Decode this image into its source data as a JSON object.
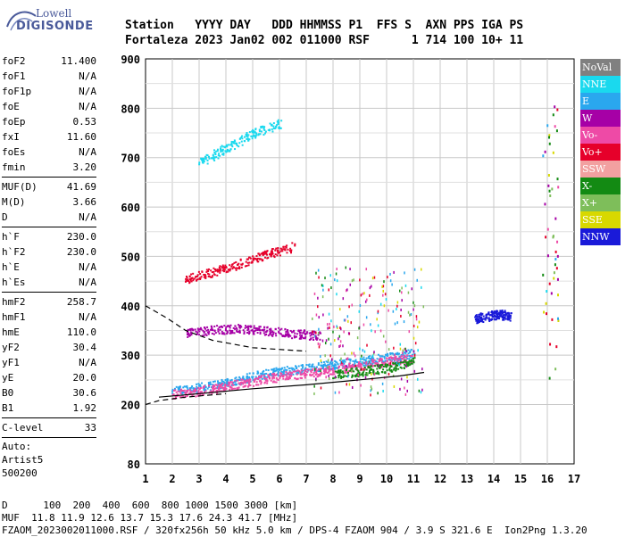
{
  "logo": {
    "line1": "Lowell",
    "line2": "DIGISONDE"
  },
  "header": {
    "line1": "Station   YYYY DAY   DDD HHMMSS P1  FFS S  AXN PPS IGA PS",
    "line2": "Fortaleza 2023 Jan02 002 011000 RSF      1 714 100 10+ 11"
  },
  "params": {
    "group1": [
      {
        "k": "foF2",
        "v": "11.400"
      },
      {
        "k": "foF1",
        "v": "N/A"
      },
      {
        "k": "foF1p",
        "v": "N/A"
      },
      {
        "k": "foE",
        "v": "N/A"
      },
      {
        "k": "foEp",
        "v": "0.53"
      },
      {
        "k": "fxI",
        "v": "11.60"
      },
      {
        "k": "foEs",
        "v": "N/A"
      },
      {
        "k": "fmin",
        "v": "3.20"
      }
    ],
    "group2": [
      {
        "k": "MUF(D)",
        "v": "41.69"
      },
      {
        "k": "M(D)",
        "v": "3.66"
      },
      {
        "k": "D",
        "v": "N/A"
      }
    ],
    "group3": [
      {
        "k": "h`F",
        "v": "230.0"
      },
      {
        "k": "h`F2",
        "v": "230.0"
      },
      {
        "k": "h`E",
        "v": "N/A"
      },
      {
        "k": "h`Es",
        "v": "N/A"
      }
    ],
    "group4": [
      {
        "k": "hmF2",
        "v": "258.7"
      },
      {
        "k": "hmF1",
        "v": "N/A"
      },
      {
        "k": "hmE",
        "v": "110.0"
      },
      {
        "k": "yF2",
        "v": "30.4"
      },
      {
        "k": "yF1",
        "v": "N/A"
      },
      {
        "k": "yE",
        "v": "20.0"
      },
      {
        "k": "B0",
        "v": "30.6"
      },
      {
        "k": "B1",
        "v": "1.92"
      }
    ],
    "clevel": {
      "k": "C-level",
      "v": "33"
    },
    "auto": [
      "Auto:",
      "Artist5",
      "500200"
    ]
  },
  "legend": [
    {
      "label": "NoVal",
      "color": "#808080"
    },
    {
      "label": "NNE",
      "color": "#1ad9ee"
    },
    {
      "label": "E",
      "color": "#2aa7ee"
    },
    {
      "label": "W",
      "color": "#a600a6"
    },
    {
      "label": "Vo-",
      "color": "#ee4aa6"
    },
    {
      "label": "Vo+",
      "color": "#e6002a"
    },
    {
      "label": "SSW",
      "color": "#f2a0a0"
    },
    {
      "label": "X-",
      "color": "#138a13"
    },
    {
      "label": "X+",
      "color": "#7ebe5a"
    },
    {
      "label": "SSE",
      "color": "#d8d800"
    },
    {
      "label": "NNW",
      "color": "#1a1ad9"
    }
  ],
  "bottom": {
    "line1": "D      100  200  400  600  800 1000 1500 3000 [km]",
    "line2": "MUF  11.8 11.9 12.6 13.7 15.3 17.6 24.3 41.7 [MHz]",
    "line3": "FZAOM_2023002011000.RSF / 320fx256h 50 kHz 5.0 km / DPS-4 FZAOM 904 / 3.9 S 321.6 E  Ion2Png 1.3.20"
  },
  "chart_data": {
    "type": "scatter",
    "title": "",
    "xlabel": "",
    "ylabel": "",
    "xlim": [
      1,
      17
    ],
    "ylim": [
      80,
      900
    ],
    "x_ticks": [
      1,
      2,
      3,
      4,
      5,
      6,
      7,
      8,
      9,
      10,
      11,
      12,
      13,
      14,
      15,
      16,
      17
    ],
    "y_ticks": [
      80,
      200,
      300,
      400,
      500,
      600,
      700,
      800,
      900
    ],
    "grid": true,
    "legend_position": "right",
    "series": [
      {
        "name": "E",
        "points": [
          [
            2.0,
            228
          ],
          [
            3.0,
            235
          ],
          [
            4.0,
            245
          ],
          [
            5.0,
            258
          ],
          [
            6.0,
            268
          ],
          [
            7.0,
            275
          ],
          [
            8.0,
            282
          ],
          [
            9.0,
            288
          ],
          [
            10.0,
            296
          ],
          [
            11.0,
            305
          ]
        ]
      },
      {
        "name": "Vo-",
        "points": [
          [
            2.0,
            222
          ],
          [
            3.0,
            228
          ],
          [
            4.0,
            238
          ],
          [
            5.0,
            248
          ],
          [
            6.0,
            258
          ],
          [
            7.0,
            264
          ],
          [
            8.0,
            272
          ],
          [
            9.0,
            280
          ],
          [
            10.0,
            288
          ],
          [
            11.0,
            295
          ]
        ]
      },
      {
        "name": "W",
        "points": [
          [
            2.5,
            345
          ],
          [
            3.5,
            352
          ],
          [
            4.5,
            355
          ],
          [
            5.5,
            350
          ],
          [
            6.5,
            345
          ],
          [
            7.5,
            340
          ]
        ]
      },
      {
        "name": "Vo+",
        "points": [
          [
            2.5,
            455
          ],
          [
            3.5,
            470
          ],
          [
            4.5,
            485
          ],
          [
            5.5,
            505
          ],
          [
            6.5,
            520
          ]
        ]
      },
      {
        "name": "NNE",
        "points": [
          [
            3.0,
            690
          ],
          [
            4.0,
            720
          ],
          [
            5.0,
            750
          ],
          [
            6.0,
            770
          ]
        ]
      },
      {
        "name": "NNW",
        "points": [
          [
            13.3,
            375
          ],
          [
            13.8,
            380
          ],
          [
            14.2,
            385
          ],
          [
            14.6,
            378
          ]
        ]
      },
      {
        "name": "X-",
        "points": [
          [
            8.0,
            262
          ],
          [
            9.0,
            268
          ],
          [
            10.0,
            275
          ],
          [
            11.0,
            288
          ]
        ]
      }
    ],
    "profile_lines": {
      "solid": [
        [
          1.5,
          215
        ],
        [
          3,
          222
        ],
        [
          5,
          232
        ],
        [
          7,
          240
        ],
        [
          9,
          250
        ],
        [
          10.5,
          258
        ],
        [
          11.4,
          265
        ]
      ],
      "dashed_lower": [
        [
          1.0,
          200
        ],
        [
          1.5,
          208
        ],
        [
          2.5,
          215
        ],
        [
          4,
          222
        ]
      ],
      "dashed_upper": [
        [
          1.0,
          400
        ],
        [
          1.8,
          375
        ],
        [
          2.5,
          350
        ],
        [
          3.5,
          330
        ],
        [
          5,
          315
        ],
        [
          7,
          308
        ]
      ]
    }
  }
}
